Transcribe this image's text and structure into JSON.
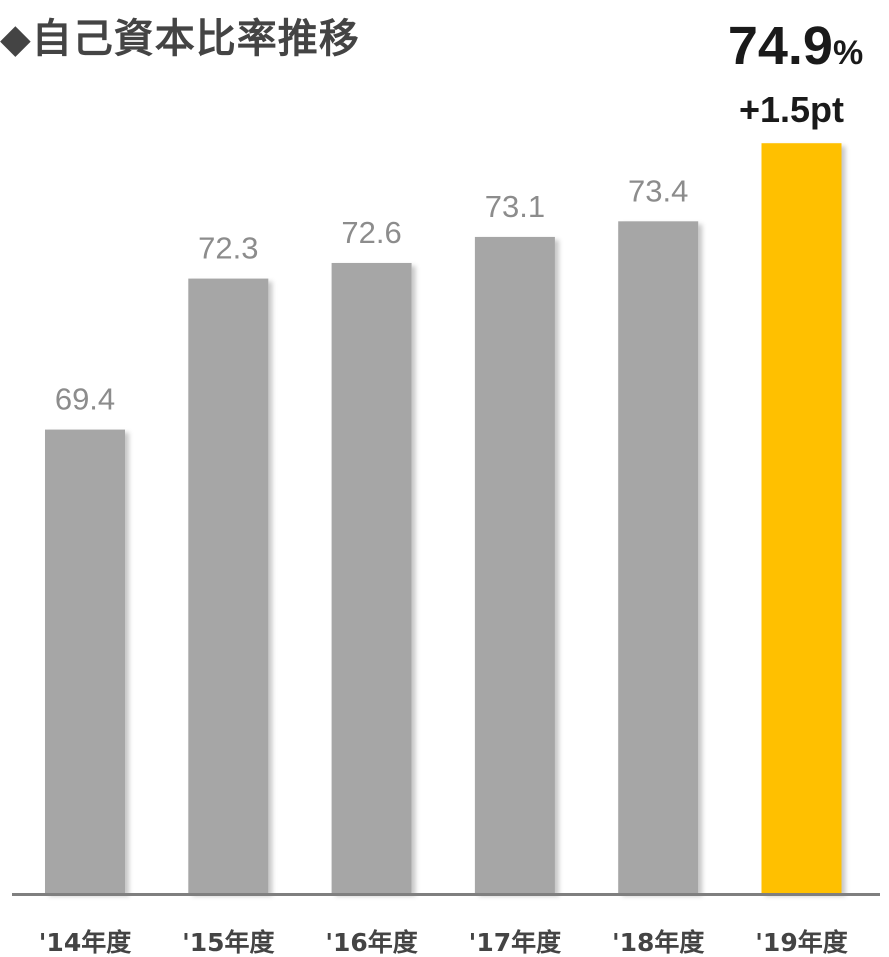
{
  "chart_data": {
    "type": "bar",
    "title": "◆自己資本比率推移",
    "categories": [
      "'14年度",
      "'15年度",
      "'16年度",
      "'17年度",
      "'18年度",
      "'19年度"
    ],
    "values": [
      69.4,
      72.3,
      72.6,
      73.1,
      73.4,
      74.9
    ],
    "value_labels": [
      "69.4",
      "72.3",
      "72.6",
      "73.1",
      "73.4",
      ""
    ],
    "highlight": {
      "index": 5,
      "value": "74.9",
      "unit": "%",
      "delta": "+1.5pt",
      "color": "#FFC000"
    },
    "colors": {
      "bar": "#A6A6A6",
      "highlight": "#FFC000",
      "axis": "#7F7F7F"
    },
    "ylim": [
      60.5,
      75
    ],
    "grid": false,
    "legend": "none"
  }
}
